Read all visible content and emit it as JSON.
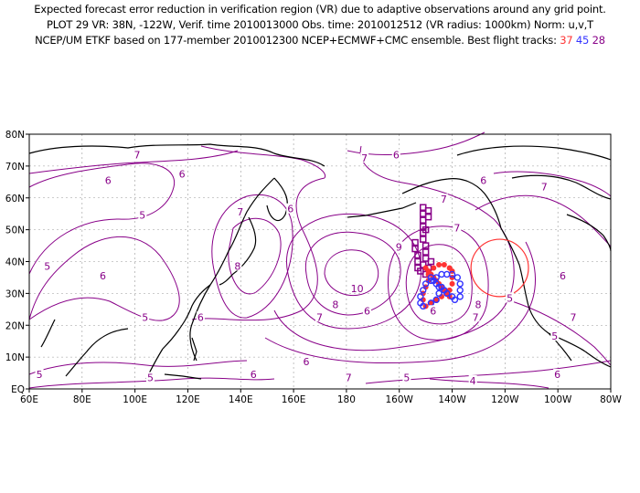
{
  "header": {
    "line1": "Expected forecast error reduction in verification region (VR) due to adaptive observations around any grid point.",
    "line2": "PLOT 29 VR: 38N, -122W, Verif. time 2010013000 Obs. time: 2010012512 (VR radius: 1000km) Norm: u,v,T",
    "line3_prefix": "NCEP/UM ETKF based on 177-member 2010012300 NCEP+ECMWF+CMC ensemble. Best flight tracks:",
    "track_a": "37",
    "track_b": "45",
    "track_c": "28"
  },
  "colors": {
    "contour": "#880088",
    "track_a": "#ff3333",
    "track_b": "#3333ff",
    "track_c": "#880088",
    "vr_circle": "#ff3333",
    "coast": "#000000",
    "grid": "#999999"
  },
  "map": {
    "lon_range": [
      60,
      280
    ],
    "lat_range": [
      0,
      80
    ],
    "x_ticks": [
      "60E",
      "80E",
      "100E",
      "120E",
      "140E",
      "160E",
      "180",
      "160W",
      "140W",
      "120W",
      "100W",
      "80W"
    ],
    "y_ticks": [
      "EQ",
      "10N",
      "20N",
      "30N",
      "40N",
      "50N",
      "60N",
      "70N",
      "80N"
    ],
    "verification_region": {
      "lat": 38,
      "lon": 238,
      "radius_km": 1000
    },
    "contour_labels": [
      {
        "text": "7",
        "lon": 101,
        "lat": 73
      },
      {
        "text": "6",
        "lon": 90,
        "lat": 65
      },
      {
        "text": "5",
        "lon": 67,
        "lat": 38
      },
      {
        "text": "6",
        "lon": 88,
        "lat": 35
      },
      {
        "text": "5",
        "lon": 104,
        "lat": 22
      },
      {
        "text": "6",
        "lon": 125,
        "lat": 22
      },
      {
        "text": "5",
        "lon": 64,
        "lat": 4
      },
      {
        "text": "5",
        "lon": 106,
        "lat": 3
      },
      {
        "text": "6",
        "lon": 118,
        "lat": 67
      },
      {
        "text": "5",
        "lon": 103,
        "lat": 54
      },
      {
        "text": "7",
        "lon": 140,
        "lat": 55
      },
      {
        "text": "6",
        "lon": 159,
        "lat": 56
      },
      {
        "text": "8",
        "lon": 139,
        "lat": 38
      },
      {
        "text": "6",
        "lon": 145,
        "lat": 4
      },
      {
        "text": "6",
        "lon": 165,
        "lat": 8
      },
      {
        "text": "7",
        "lon": 181,
        "lat": 3
      },
      {
        "text": "7",
        "lon": 187,
        "lat": 72
      },
      {
        "text": "6",
        "lon": 199,
        "lat": 73
      },
      {
        "text": "9",
        "lon": 200,
        "lat": 44
      },
      {
        "text": "10",
        "lon": 183,
        "lat": 31
      },
      {
        "text": "8",
        "lon": 176,
        "lat": 26
      },
      {
        "text": "7",
        "lon": 170,
        "lat": 22
      },
      {
        "text": "6",
        "lon": 188,
        "lat": 24
      },
      {
        "text": "7",
        "lon": 217,
        "lat": 59
      },
      {
        "text": "7",
        "lon": 222,
        "lat": 50
      },
      {
        "text": "8",
        "lon": 230,
        "lat": 26
      },
      {
        "text": "7",
        "lon": 229,
        "lat": 22
      },
      {
        "text": "6",
        "lon": 213,
        "lat": 24
      },
      {
        "text": "6",
        "lon": 232,
        "lat": 65
      },
      {
        "text": "7",
        "lon": 255,
        "lat": 63
      },
      {
        "text": "5",
        "lon": 242,
        "lat": 28
      },
      {
        "text": "6",
        "lon": 262,
        "lat": 35
      },
      {
        "text": "5",
        "lon": 259,
        "lat": 16
      },
      {
        "text": "5",
        "lon": 203,
        "lat": 3
      },
      {
        "text": "4",
        "lon": 228,
        "lat": 2
      },
      {
        "text": "6",
        "lon": 260,
        "lat": 4
      },
      {
        "text": "7",
        "lon": 266,
        "lat": 22
      }
    ]
  }
}
